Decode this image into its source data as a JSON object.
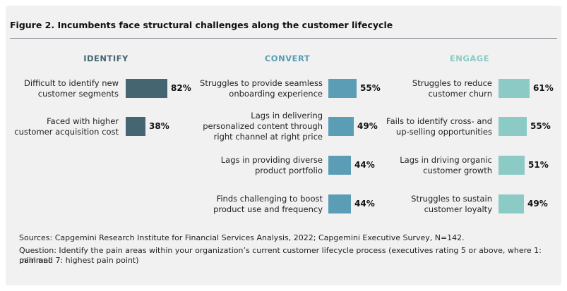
{
  "title": "Figure 2. Incumbents face structural challenges along the customer lifecycle",
  "chart_data": [
    {
      "type": "bar",
      "title": "IDENTIFY",
      "color": "#456671",
      "categories": [
        "Difficult to identify new\ncustomer segments",
        "Faced with higher\ncustomer acquisition cost"
      ],
      "values": [
        82,
        38
      ],
      "value_labels": [
        "82%",
        "38%"
      ]
    },
    {
      "type": "bar",
      "title": "CONVERT",
      "color": "#5a9db5",
      "categories": [
        "Struggles to provide seamless\nonboarding experience",
        "Lags in delivering\npersonalized content through\nright channel at right price",
        "Lags in providing diverse\nproduct portfolio",
        "Finds challenging to boost\nproduct use and frequency"
      ],
      "values": [
        55,
        49,
        44,
        44
      ],
      "value_labels": [
        "55%",
        "49%",
        "44%",
        "44%"
      ]
    },
    {
      "type": "bar",
      "title": "ENGAGE",
      "color": "#8bcac5",
      "categories": [
        "Struggles to reduce\ncustomer churn",
        "Fails to identify cross- and\nup-selling opportunities",
        "Lags in driving organic\ncustomer growth",
        "Struggles to sustain\ncustomer loyalty"
      ],
      "values": [
        61,
        55,
        51,
        49
      ],
      "value_labels": [
        "61%",
        "55%",
        "51%",
        "49%"
      ]
    }
  ],
  "footer": {
    "sources": "Sources: Capgemini Research Institute for Financial Services Analysis, 2022; Capgemini Executive Survey, N=142.",
    "question_line1": "Question: Identify the pain areas within your organization’s current customer lifecycle process (executives rating  5 or above, where 1: minimal",
    "question_line2": "pain and 7: highest pain point)"
  }
}
